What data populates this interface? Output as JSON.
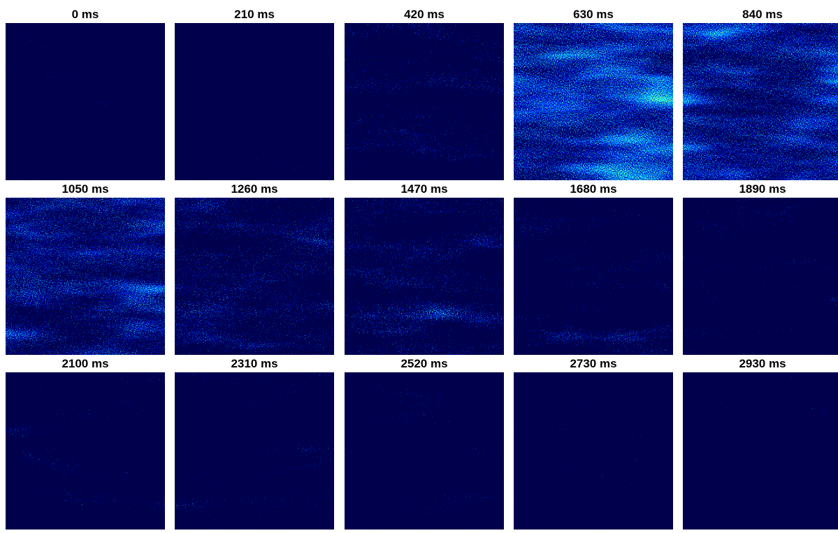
{
  "panels": [
    {
      "title": "0 ms"
    },
    {
      "title": "210 ms"
    },
    {
      "title": "420 ms"
    },
    {
      "title": "630 ms"
    },
    {
      "title": "840 ms"
    },
    {
      "title": "1050 ms"
    },
    {
      "title": "1260 ms"
    },
    {
      "title": "1470 ms"
    },
    {
      "title": "1680 ms"
    },
    {
      "title": "1890 ms"
    },
    {
      "title": "2100 ms"
    },
    {
      "title": "2310 ms"
    },
    {
      "title": "2520 ms"
    },
    {
      "title": "2730 ms"
    },
    {
      "title": "2930 ms"
    }
  ]
}
